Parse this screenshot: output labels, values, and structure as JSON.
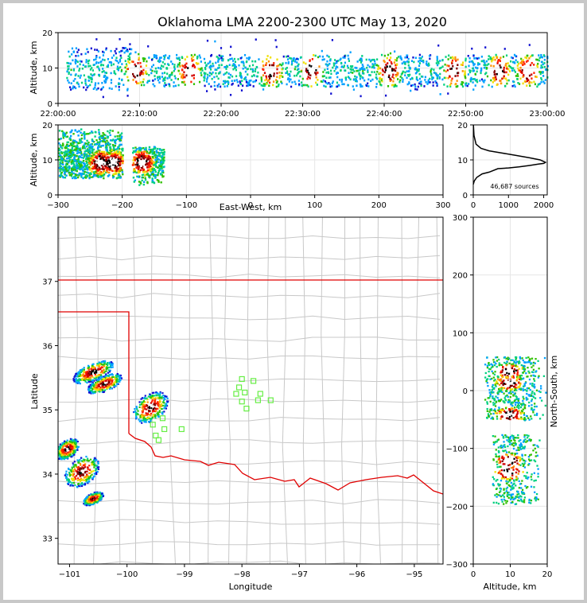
{
  "figure": {
    "title": "Oklahoma LMA 2200-2300 UTC May 13, 2020",
    "source_count": "46,687 sources"
  },
  "colors": {
    "state_border": "#e00000",
    "county_lines": "#c8c8c8",
    "stations": "#66ee44"
  },
  "chart_data": [
    {
      "id": "time_height",
      "type": "heatmap",
      "xlabel": "",
      "ylabel": "Altitude, km",
      "xticks": [
        "22:00:00",
        "22:10:00",
        "22:20:00",
        "22:30:00",
        "22:40:00",
        "22:50:00",
        "23:00:00"
      ],
      "xlim": [
        "22:00:00",
        "23:00:00"
      ],
      "ylim": [
        0,
        20
      ],
      "yticks": [
        "0",
        "10",
        "20"
      ],
      "activity_minutes": [
        1,
        60
      ],
      "altitude_band_km": [
        5,
        14
      ],
      "cores_minutes": [
        9.5,
        16,
        26,
        31,
        40.5,
        48.5,
        54,
        57.5
      ]
    },
    {
      "id": "ew_height",
      "type": "heatmap",
      "xlabel": "East-West, km",
      "ylabel": "Altitude, km",
      "xlim": [
        -300,
        300
      ],
      "xticks": [
        "−300",
        "−200",
        "−100",
        "0",
        "100",
        "200",
        "300"
      ],
      "ylim": [
        0,
        20
      ],
      "yticks": [
        "0",
        "10",
        "20"
      ],
      "clusters": [
        {
          "x_range_km": [
            -300,
            -200
          ],
          "alt_range_km": [
            5,
            19
          ],
          "cores_km": [
            -235,
            -215
          ]
        },
        {
          "x_range_km": [
            -185,
            -135
          ],
          "alt_range_km": [
            3,
            14
          ],
          "cores_km": [
            -170
          ]
        }
      ]
    },
    {
      "id": "altitude_histogram",
      "type": "line",
      "xlim": [
        0,
        2100
      ],
      "xticks": [
        "0",
        "1000",
        "2000"
      ],
      "ylim": [
        0,
        20
      ],
      "yticks": [
        "0",
        "10",
        "20"
      ],
      "x": [
        0,
        30,
        100,
        250,
        450,
        700,
        1000,
        1300,
        1600,
        1850,
        2000,
        2050,
        1900,
        1600,
        1200,
        800,
        450,
        220,
        80,
        20,
        5
      ],
      "y": [
        3,
        4,
        5,
        6,
        6.5,
        7.5,
        7.7,
        8,
        8.4,
        8.8,
        9,
        9.3,
        10,
        10.6,
        11.3,
        12,
        12.6,
        13.3,
        14.5,
        17,
        20
      ]
    },
    {
      "id": "plan_view",
      "type": "heatmap",
      "xlabel": "Longitude",
      "ylabel": "Latitude",
      "xlim": [
        -101.2,
        -94.5
      ],
      "ylim": [
        32.6,
        38.0
      ],
      "xticks": [
        "−101",
        "−100",
        "−99",
        "−98",
        "−97",
        "−96",
        "−95"
      ],
      "yticks": [
        "33",
        "34",
        "35",
        "36",
        "37"
      ],
      "clusters": [
        {
          "lon": -100.6,
          "lat": 35.6,
          "w": 0.7,
          "h": 0.28
        },
        {
          "lon": -100.4,
          "lat": 35.42,
          "w": 0.6,
          "h": 0.25
        },
        {
          "lon": -99.6,
          "lat": 35.05,
          "w": 0.6,
          "h": 0.45
        },
        {
          "lon": -101.05,
          "lat": 34.4,
          "w": 0.4,
          "h": 0.3
        },
        {
          "lon": -100.8,
          "lat": 34.05,
          "w": 0.6,
          "h": 0.45
        },
        {
          "lon": -100.6,
          "lat": 33.63,
          "w": 0.35,
          "h": 0.18
        }
      ],
      "stations": [
        {
          "lon": -98.0,
          "lat": 35.48
        },
        {
          "lon": -97.8,
          "lat": 35.45
        },
        {
          "lon": -98.05,
          "lat": 35.35
        },
        {
          "lon": -98.1,
          "lat": 35.25
        },
        {
          "lon": -97.95,
          "lat": 35.27
        },
        {
          "lon": -97.68,
          "lat": 35.25
        },
        {
          "lon": -97.5,
          "lat": 35.15
        },
        {
          "lon": -97.72,
          "lat": 35.15
        },
        {
          "lon": -98.0,
          "lat": 35.13
        },
        {
          "lon": -97.92,
          "lat": 35.02
        },
        {
          "lon": -99.38,
          "lat": 34.87
        },
        {
          "lon": -99.55,
          "lat": 34.77
        },
        {
          "lon": -99.35,
          "lat": 34.7
        },
        {
          "lon": -99.05,
          "lat": 34.7
        },
        {
          "lon": -99.5,
          "lat": 34.6
        },
        {
          "lon": -99.45,
          "lat": 34.53
        }
      ]
    },
    {
      "id": "ns_height",
      "type": "heatmap",
      "xlabel": "Altitude, km",
      "ylabel": "North-South, km",
      "xlim": [
        0,
        20
      ],
      "xticks": [
        "0",
        "10",
        "20"
      ],
      "ylim": [
        -300,
        300
      ],
      "yticks": [
        "−300",
        "−200",
        "−100",
        "0",
        "100",
        "200",
        "300"
      ],
      "clusters": [
        {
          "ns_range_km": [
            -50,
            60
          ],
          "alt_range_km": [
            3,
            20
          ],
          "cores_km": [
            35,
            15,
            -40
          ]
        },
        {
          "ns_range_km": [
            -195,
            -75
          ],
          "alt_range_km": [
            5,
            18
          ],
          "cores_km": [
            -120,
            -140
          ]
        }
      ]
    }
  ]
}
